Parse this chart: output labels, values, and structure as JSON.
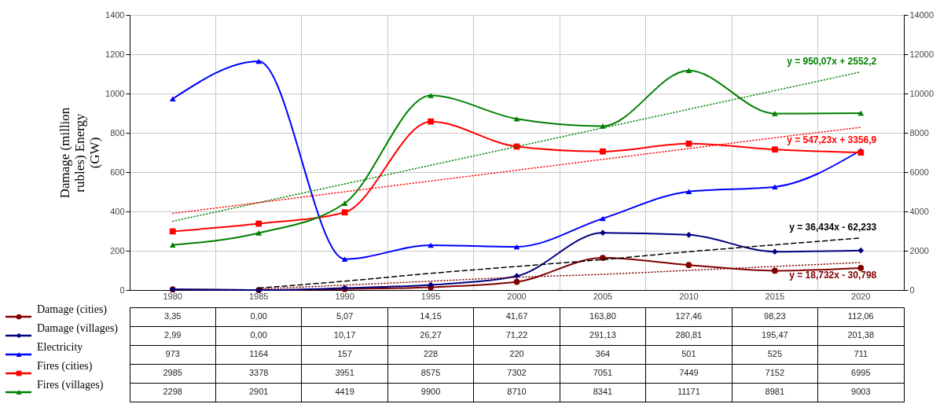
{
  "chart_data": {
    "type": "line",
    "categories": [
      "1980",
      "1985",
      "1990",
      "1995",
      "2000",
      "2005",
      "2010",
      "2015",
      "2020"
    ],
    "ylabel": "Damage (million rubles) Energy (GW)",
    "ylim": [
      0,
      1400
    ],
    "yticks": [
      0,
      200,
      400,
      600,
      800,
      1000,
      1200,
      1400
    ],
    "y2lim": [
      0,
      14000
    ],
    "y2ticks": [
      0,
      2000,
      4000,
      6000,
      8000,
      10000,
      12000,
      14000
    ],
    "grid": true,
    "legend": "bottom left",
    "series": [
      {
        "name": "Damage (cities)",
        "color": "#800000",
        "marker": "circle",
        "values": [
          3.35,
          0.0,
          5.07,
          14.15,
          41.67,
          163.8,
          127.46,
          98.23,
          112.06
        ],
        "value_labels": [
          "3,35",
          "0,00",
          "5,07",
          "14,15",
          "41,67",
          "163,80",
          "127,46",
          "98,23",
          "112,06"
        ]
      },
      {
        "name": "Damage (villages)",
        "color": "#000080",
        "marker": "diamond",
        "values": [
          2.99,
          0.0,
          10.17,
          26.27,
          71.22,
          291.13,
          280.81,
          195.47,
          201.38
        ],
        "value_labels": [
          "2,99",
          "0,00",
          "10,17",
          "26,27",
          "71,22",
          "291,13",
          "280,81",
          "195,47",
          "201,38"
        ]
      },
      {
        "name": "Electricity",
        "color": "#0000ff",
        "marker": "triangle",
        "values": [
          973,
          1164,
          157,
          228,
          220,
          364,
          501,
          525,
          711
        ],
        "value_labels": [
          "973",
          "1164",
          "157",
          "228",
          "220",
          "364",
          "501",
          "525",
          "711"
        ]
      },
      {
        "name": "Fires (cities)",
        "color": "#ff0000",
        "marker": "square",
        "axis": "y2",
        "values": [
          2985,
          3378,
          3951,
          8575,
          7302,
          7051,
          7449,
          7152,
          6995
        ],
        "value_labels": [
          "2985",
          "3378",
          "3951",
          "8575",
          "7302",
          "7051",
          "7449",
          "7152",
          "6995"
        ]
      },
      {
        "name": "Fires (villages)",
        "color": "#008000",
        "marker": "triangle",
        "axis": "y2",
        "values": [
          2298,
          2901,
          4419,
          9900,
          8710,
          8341,
          11171,
          8981,
          9003
        ],
        "value_labels": [
          "2298",
          "2901",
          "4419",
          "9900",
          "8710",
          "8341",
          "11171",
          "8981",
          "9003"
        ]
      },
      {
        "type": "line",
        "color": "#008000",
        "axis": "y2",
        "line_style": "dotted",
        "values": [
          3500,
          4450,
          5400,
          6350,
          7300,
          8250,
          9200,
          10150,
          11100
        ]
      },
      {
        "type": "line",
        "color": "#ff0000",
        "axis": "y2",
        "line_style": "dotted",
        "values": [
          3900,
          4450,
          5000,
          5550,
          6100,
          6650,
          7200,
          7750,
          8280
        ]
      },
      {
        "type": "line",
        "color": "#000000",
        "line_style": "dashed",
        "values": [
          null,
          10,
          45,
          85,
          120,
          155,
          195,
          230,
          265
        ]
      },
      {
        "type": "line",
        "color": "#800000",
        "line_style": "dotted",
        "values": [
          null,
          5,
          25,
          45,
          65,
          80,
          100,
          120,
          140
        ]
      }
    ],
    "annotations": [
      "y = 950,07x + 2552,2",
      "y = 547,23x + 3356,9",
      "y = 36,434x - 62,233",
      "y = 18,732x - 30,798"
    ]
  }
}
